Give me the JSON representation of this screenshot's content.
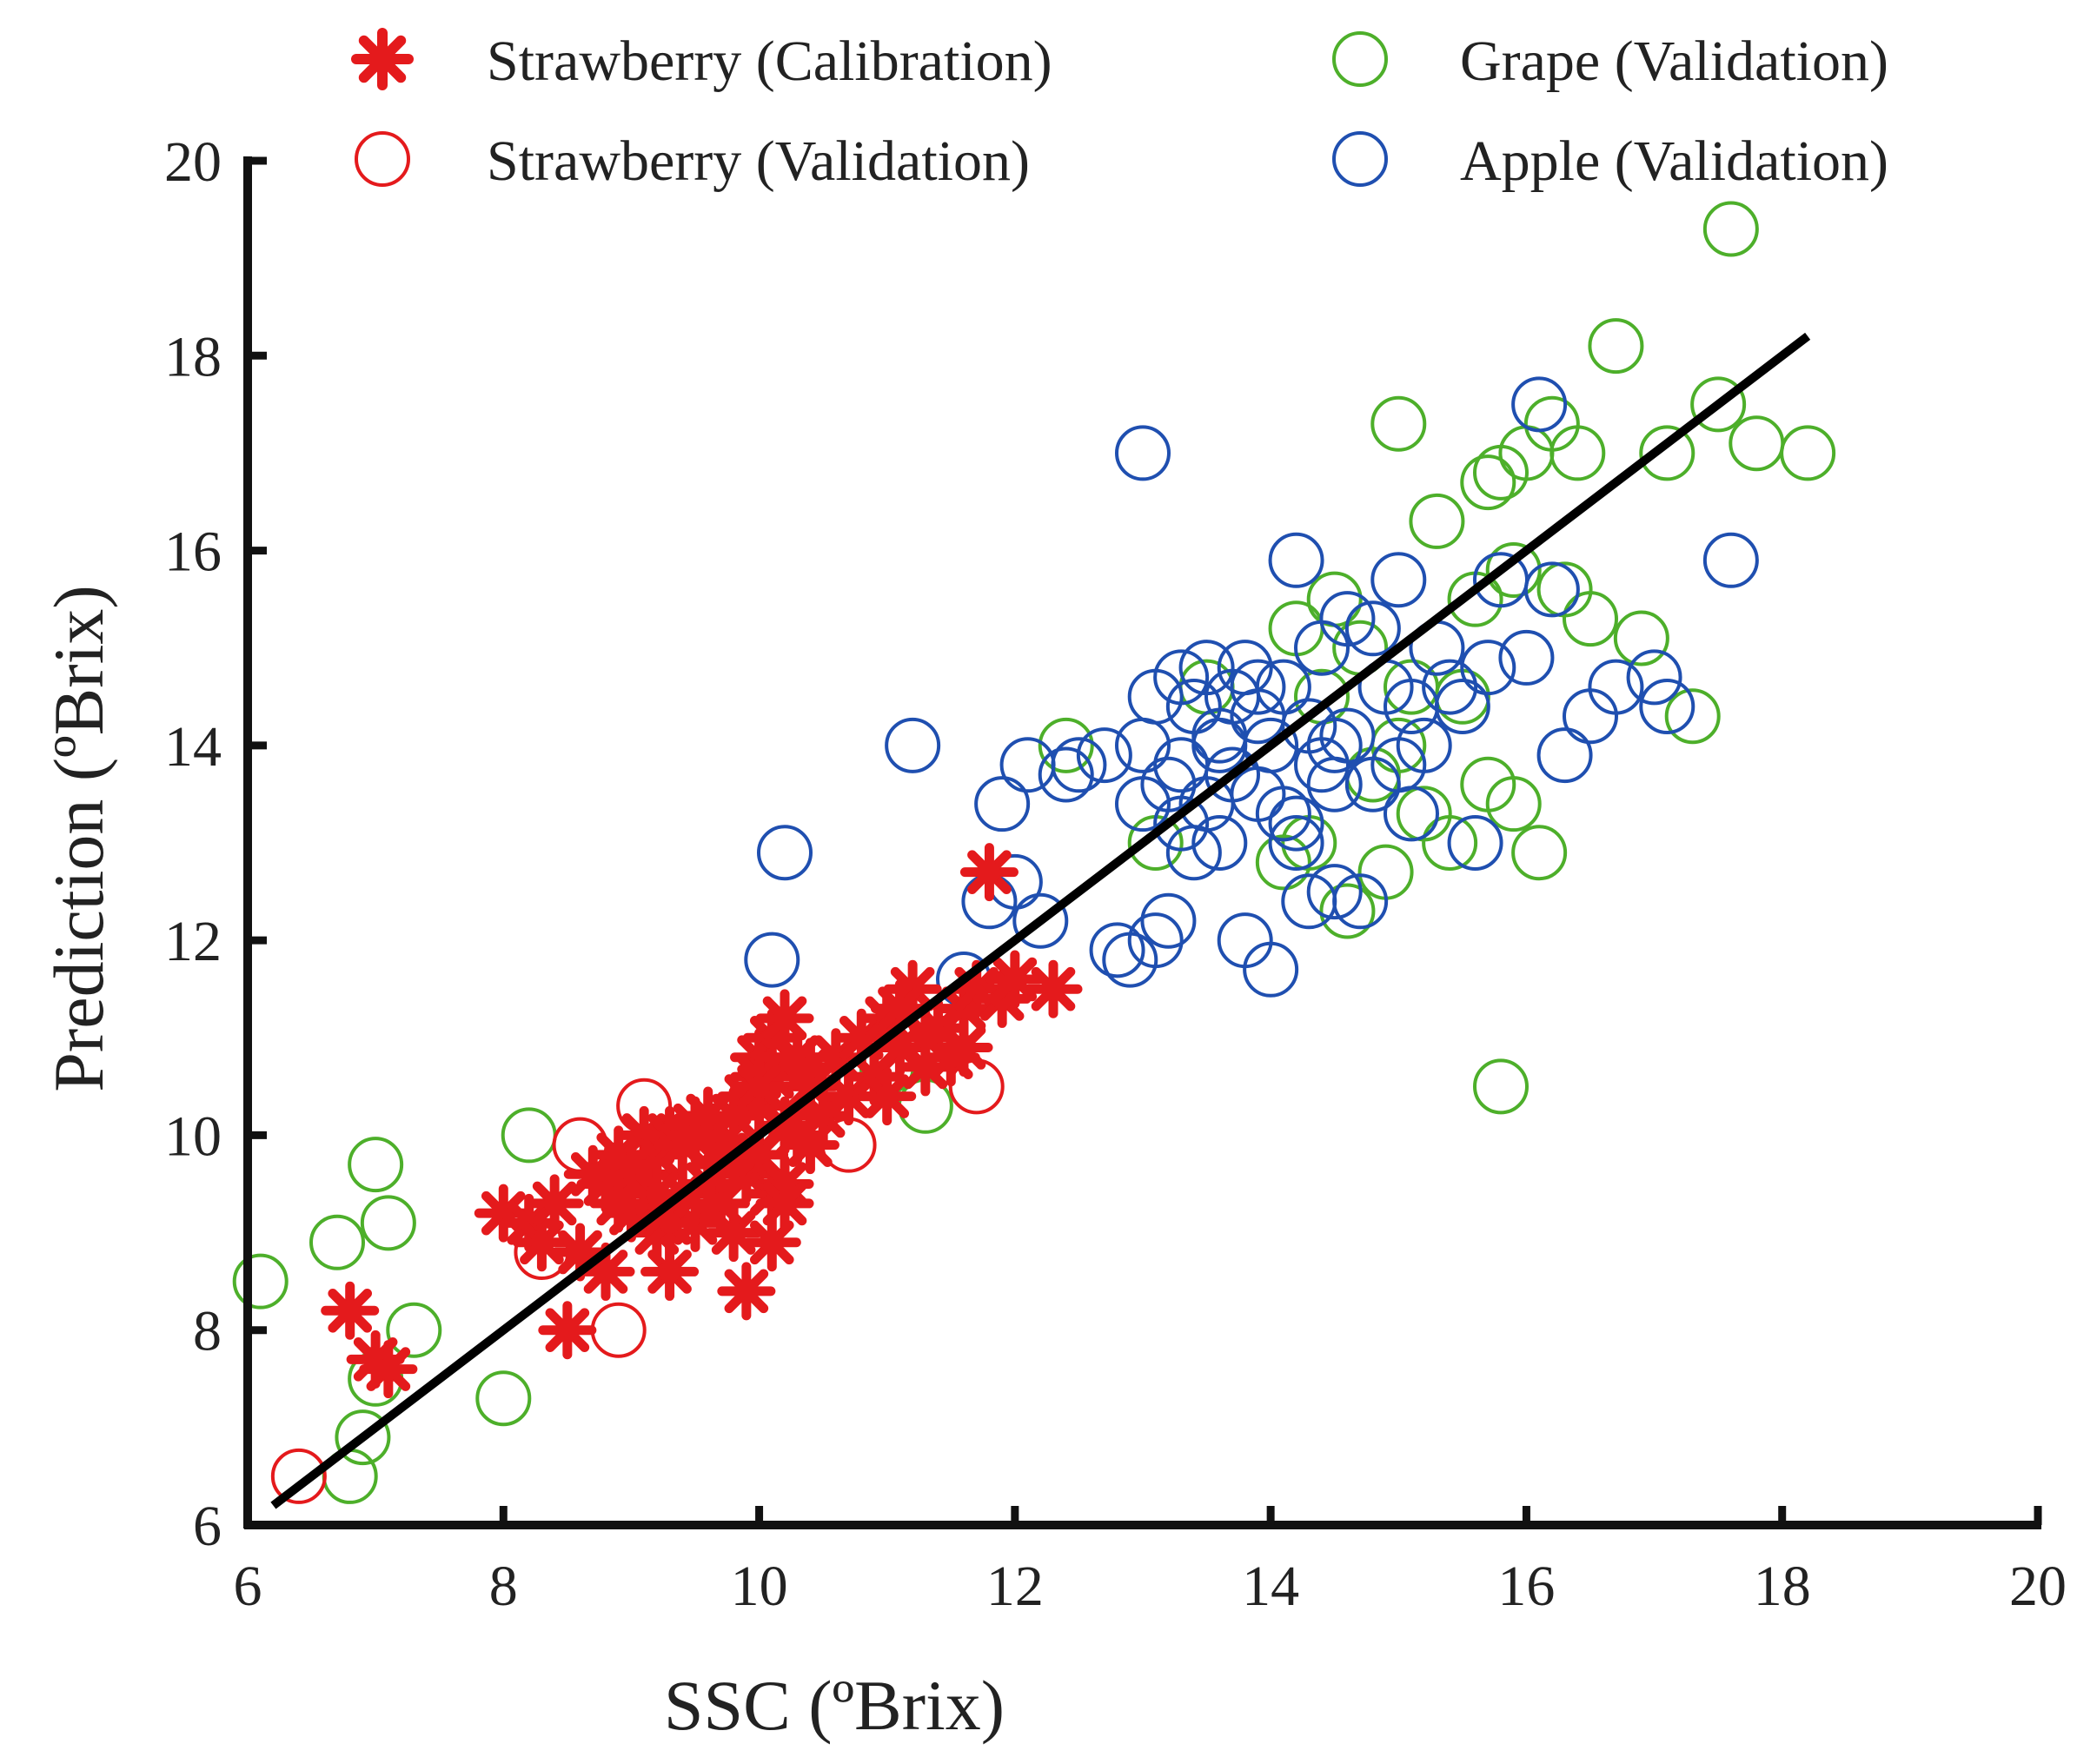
{
  "chart_data": {
    "type": "scatter",
    "title": "",
    "xlabel": "SSC (ºBrix)",
    "ylabel": "Prediction (ºBrix)",
    "xlim": [
      6,
      20
    ],
    "ylim": [
      6,
      20
    ],
    "xticks": [
      6,
      8,
      10,
      12,
      14,
      16,
      18,
      20
    ],
    "yticks": [
      6,
      8,
      10,
      12,
      14,
      16,
      18,
      20
    ],
    "xtick_labels": [
      "6",
      "8",
      "10",
      "12",
      "14",
      "16",
      "18",
      "20"
    ],
    "ytick_labels": [
      "6",
      "8",
      "10",
      "12",
      "14",
      "16",
      "18",
      "20"
    ],
    "grid": false,
    "legend_position": "top",
    "fit_line": {
      "x": [
        6.2,
        18.2
      ],
      "y": [
        6.2,
        18.2
      ],
      "color": "#000000"
    },
    "series": [
      {
        "name": "Strawberry (Calibration)",
        "marker": "asterisk",
        "color": "#e41a1c",
        "x": [
          6.8,
          7.0,
          7.1,
          8.0,
          8.2,
          8.3,
          8.5,
          8.6,
          8.7,
          8.8,
          8.8,
          8.9,
          9.0,
          9.0,
          9.1,
          9.1,
          9.2,
          9.2,
          9.3,
          9.3,
          9.4,
          9.4,
          9.5,
          9.5,
          9.6,
          9.6,
          9.7,
          9.7,
          9.8,
          9.8,
          9.9,
          9.9,
          10.0,
          10.0,
          10.0,
          10.1,
          10.1,
          10.1,
          10.2,
          10.2,
          10.2,
          10.3,
          10.3,
          10.4,
          10.4,
          10.5,
          10.6,
          10.7,
          10.8,
          10.9,
          11.0,
          11.0,
          11.1,
          11.2,
          11.3,
          11.4,
          11.5,
          11.6,
          11.7,
          11.8,
          11.9,
          12.0,
          12.3,
          8.4,
          9.2,
          9.7,
          9.9,
          10.0,
          10.1,
          10.2,
          9.0,
          9.5,
          8.9,
          9.3,
          9.8,
          10.0,
          10.4,
          11.1,
          11.3,
          11.6
        ],
        "y": [
          8.2,
          7.7,
          7.6,
          9.2,
          9.1,
          8.9,
          8.0,
          8.8,
          9.6,
          9.5,
          8.6,
          9.8,
          9.2,
          9.5,
          10.0,
          9.6,
          9.0,
          9.8,
          10.0,
          8.6,
          9.4,
          9.9,
          9.1,
          10.1,
          9.5,
          10.2,
          9.3,
          9.9,
          9.0,
          9.7,
          10.4,
          9.6,
          10.8,
          9.8,
          10.3,
          11.0,
          10.6,
          9.4,
          11.2,
          10.1,
          9.5,
          10.8,
          10.0,
          10.5,
          9.9,
          10.2,
          10.8,
          10.4,
          11.0,
          10.6,
          11.2,
          10.4,
          10.9,
          11.5,
          10.7,
          11.1,
          10.8,
          11.3,
          11.5,
          12.7,
          11.4,
          11.6,
          11.5,
          9.3,
          9.4,
          9.7,
          8.4,
          10.6,
          8.9,
          9.3,
          9.7,
          10.0,
          9.3,
          9.1,
          10.2,
          10.5,
          10.7,
          11.3,
          11.0,
          10.9
        ]
      },
      {
        "name": "Strawberry (Validation)",
        "marker": "circle",
        "color": "#e41a1c",
        "x": [
          6.4,
          8.3,
          8.6,
          8.9,
          9.1,
          9.4,
          10.7,
          11.7
        ],
        "y": [
          6.5,
          8.8,
          9.9,
          8.0,
          10.3,
          9.6,
          9.9,
          10.5
        ]
      },
      {
        "name": "Grape (Validation)",
        "marker": "circle",
        "color": "#4daf2a",
        "x": [
          6.1,
          6.7,
          6.8,
          6.9,
          7.0,
          7.0,
          7.1,
          7.3,
          8.0,
          8.2,
          11.0,
          11.3,
          12.4,
          13.1,
          13.5,
          14.1,
          14.2,
          14.3,
          14.4,
          14.5,
          14.6,
          14.7,
          14.8,
          14.9,
          15.0,
          15.0,
          15.1,
          15.2,
          15.3,
          15.4,
          15.5,
          15.6,
          15.7,
          15.7,
          15.8,
          15.8,
          15.9,
          15.9,
          16.0,
          16.1,
          16.2,
          16.3,
          16.4,
          16.5,
          16.7,
          16.9,
          17.1,
          17.3,
          17.5,
          17.6,
          17.8,
          18.2
        ],
        "y": [
          8.5,
          8.9,
          6.5,
          6.9,
          9.7,
          7.5,
          9.1,
          8.0,
          7.3,
          10.0,
          10.7,
          10.3,
          14.0,
          13.0,
          14.6,
          12.8,
          15.2,
          13.0,
          14.5,
          15.5,
          12.3,
          15.0,
          13.7,
          12.7,
          14.0,
          17.3,
          14.6,
          13.3,
          16.3,
          13.0,
          14.5,
          15.5,
          16.7,
          13.6,
          16.8,
          10.5,
          13.4,
          15.8,
          17.0,
          12.9,
          17.3,
          15.6,
          17.0,
          15.3,
          18.1,
          15.1,
          17.0,
          14.3,
          17.5,
          19.3,
          17.1,
          17.0
        ]
      },
      {
        "name": "Apple (Validation)",
        "marker": "circle",
        "color": "#1f4fb0",
        "x": [
          10.1,
          10.2,
          11.2,
          11.6,
          11.8,
          11.9,
          12.0,
          12.1,
          12.2,
          12.4,
          12.5,
          12.7,
          12.8,
          12.9,
          13.0,
          13.0,
          13.1,
          13.1,
          13.2,
          13.2,
          13.3,
          13.3,
          13.4,
          13.4,
          13.5,
          13.5,
          13.6,
          13.6,
          13.7,
          13.7,
          13.8,
          13.8,
          13.9,
          13.9,
          14.0,
          14.0,
          14.1,
          14.1,
          14.2,
          14.2,
          14.3,
          14.3,
          14.4,
          14.4,
          14.5,
          14.5,
          14.6,
          14.6,
          14.7,
          14.8,
          14.9,
          15.0,
          15.0,
          15.1,
          15.2,
          15.3,
          15.4,
          15.5,
          15.6,
          15.7,
          15.8,
          16.0,
          16.1,
          16.2,
          16.3,
          16.5,
          16.7,
          17.0,
          17.1,
          17.6,
          13.0,
          13.3,
          13.6,
          13.9,
          14.2,
          14.5,
          14.8,
          15.1
        ],
        "y": [
          11.8,
          12.9,
          14.0,
          11.6,
          12.4,
          13.4,
          12.6,
          13.8,
          12.2,
          13.7,
          13.8,
          13.9,
          11.9,
          11.8,
          17.0,
          14.0,
          12.0,
          14.5,
          13.6,
          12.2,
          14.7,
          13.2,
          14.4,
          12.9,
          14.8,
          13.4,
          14.0,
          13.0,
          14.5,
          13.7,
          12.0,
          14.8,
          13.5,
          14.3,
          11.7,
          14.0,
          13.3,
          14.6,
          15.9,
          13.0,
          12.4,
          14.2,
          13.8,
          15.0,
          12.5,
          13.6,
          15.3,
          14.1,
          12.4,
          15.2,
          14.6,
          15.7,
          13.8,
          14.4,
          14.0,
          15.0,
          14.6,
          14.4,
          13.0,
          14.8,
          15.7,
          14.9,
          17.5,
          15.6,
          13.9,
          14.3,
          14.6,
          14.7,
          14.4,
          15.9,
          13.4,
          13.8,
          14.1,
          14.6,
          13.2,
          14.0,
          13.6,
          13.3
        ]
      }
    ]
  }
}
